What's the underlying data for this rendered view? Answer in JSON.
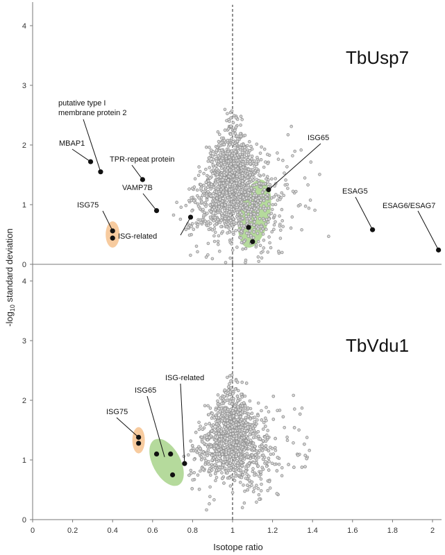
{
  "chart_data": {
    "type": "scatter",
    "xlabel": "Isotope ratio",
    "ylabel": "-log10 standard deviation",
    "ylabel_base": "-log",
    "ylabel_sub": "10",
    "ylabel_rest": " standard deviation",
    "xlim": [
      0,
      2.05
    ],
    "x_ticks": [
      "0",
      "0.2",
      "0.4",
      "0.6",
      "0.8",
      "1",
      "1.2",
      "1.4",
      "1.6",
      "1.8",
      "2"
    ],
    "y_ticks": [
      "0",
      "1",
      "2",
      "3",
      "4"
    ],
    "reference_line_x": 1,
    "grid": false,
    "marker_colors": {
      "background": "#8f8f8f",
      "highlight": "#111111",
      "orange": "#f6c28e",
      "green": "#a8d38b"
    },
    "panels": [
      {
        "title": "TbUsp7",
        "ylim": [
          0,
          4.4
        ],
        "background_points": {
          "count": 1600,
          "center_x": 1.0,
          "spread": "dense cloud around ratio 1"
        },
        "highlighted_points": [
          {
            "label": "MBAP1",
            "x": 0.29,
            "y": 1.72
          },
          {
            "label": "putative type I membrane protein 2",
            "x": 0.34,
            "y": 1.55
          },
          {
            "label": "TPR-repeat protein",
            "x": 0.55,
            "y": 1.42
          },
          {
            "label": "VAMP7B",
            "x": 0.62,
            "y": 0.9
          },
          {
            "label": "ISG-related",
            "x": 0.79,
            "y": 0.79
          },
          {
            "label": "ISG75",
            "x": 0.4,
            "y": 0.56
          },
          {
            "label": "ISG75",
            "x": 0.4,
            "y": 0.44
          },
          {
            "label": "ISG65",
            "x": 1.18,
            "y": 1.25
          },
          {
            "label": "ISG65",
            "x": 1.08,
            "y": 0.62
          },
          {
            "label": "ISG65",
            "x": 1.1,
            "y": 0.38
          },
          {
            "label": "ESAG5",
            "x": 1.7,
            "y": 0.58
          },
          {
            "label": "ESAG6/ESAG7",
            "x": 2.03,
            "y": 0.24
          }
        ],
        "annotations": [
          {
            "text": "MBAP1",
            "target_x": 0.29,
            "target_y": 1.72
          },
          {
            "text": "putative type I",
            "line2": "membrane protein 2",
            "target_x": 0.34,
            "target_y": 1.55
          },
          {
            "text": "TPR-repeat protein",
            "target_x": 0.55,
            "target_y": 1.42
          },
          {
            "text": "VAMP7B",
            "target_x": 0.62,
            "target_y": 0.9
          },
          {
            "text": "ISG-related",
            "target_x": 0.79,
            "target_y": 0.79
          },
          {
            "text": "ISG75",
            "target_x": 0.4,
            "target_y": 0.56
          },
          {
            "text": "ISG65",
            "target_x": 1.18,
            "target_y": 1.25
          },
          {
            "text": "ESAG5",
            "target_x": 1.7,
            "target_y": 0.58
          },
          {
            "text": "ESAG6/ESAG7",
            "target_x": 2.03,
            "target_y": 0.24
          }
        ],
        "groups": [
          {
            "label": "ISG75",
            "color": "orange",
            "center_x": 0.4,
            "center_y": 0.5
          },
          {
            "label": "ISG65",
            "color": "green",
            "center_x": 1.11,
            "center_y": 0.85
          }
        ]
      },
      {
        "title": "TbVdu1",
        "ylim": [
          0,
          4.4
        ],
        "background_points": {
          "count": 1500,
          "center_x": 1.0,
          "spread": "dense cloud around ratio 1"
        },
        "highlighted_points": [
          {
            "label": "ISG75",
            "x": 0.53,
            "y": 1.38
          },
          {
            "label": "ISG75",
            "x": 0.53,
            "y": 1.28
          },
          {
            "label": "ISG65",
            "x": 0.62,
            "y": 1.1
          },
          {
            "label": "ISG65",
            "x": 0.69,
            "y": 1.1
          },
          {
            "label": "ISG65",
            "x": 0.7,
            "y": 0.75
          },
          {
            "label": "ISG-related",
            "x": 0.76,
            "y": 0.94
          }
        ],
        "annotations": [
          {
            "text": "ISG75",
            "target_x": 0.53,
            "target_y": 1.38
          },
          {
            "text": "ISG65",
            "target_x": 0.66,
            "target_y": 1.05
          },
          {
            "text": "ISG-related",
            "target_x": 0.76,
            "target_y": 0.94
          }
        ],
        "groups": [
          {
            "label": "ISG75",
            "color": "orange",
            "center_x": 0.53,
            "center_y": 1.33
          },
          {
            "label": "ISG65",
            "color": "green",
            "center_x": 0.67,
            "center_y": 0.96
          }
        ]
      }
    ]
  }
}
